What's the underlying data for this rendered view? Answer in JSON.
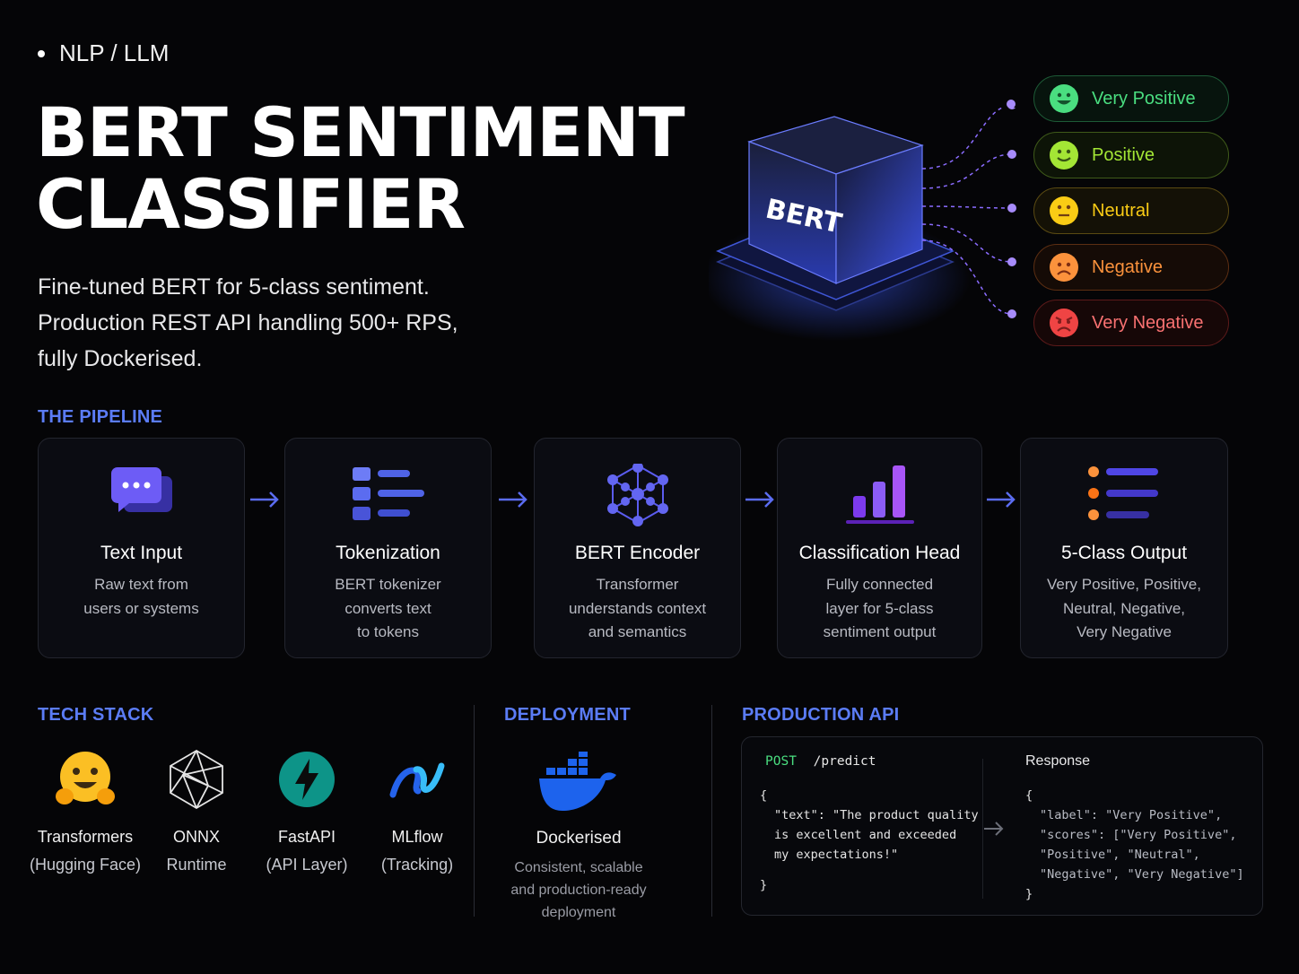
{
  "header": {
    "tag": "NLP / LLM",
    "title_line1": "BERT SENTIMENT",
    "title_line2": "CLASSIFIER",
    "desc_line1": "Fine-tuned BERT for 5-class sentiment.",
    "desc_line2": "Production REST API handling 500+ RPS,",
    "desc_line3": "fully Dockerised."
  },
  "hero": {
    "cube_label": "BERT",
    "classes": [
      {
        "label": "Very Positive",
        "color": "#22c55e"
      },
      {
        "label": "Positive",
        "color": "#84cc16"
      },
      {
        "label": "Neutral",
        "color": "#eab308"
      },
      {
        "label": "Negative",
        "color": "#f97316"
      },
      {
        "label": "Very Negative",
        "color": "#ef4444"
      }
    ]
  },
  "pipeline": {
    "heading": "THE PIPELINE",
    "steps": [
      {
        "title": "Text Input",
        "lines": [
          "Raw text from",
          "users or systems",
          ""
        ],
        "icon": "chat-bubble-icon"
      },
      {
        "title": "Tokenization",
        "lines": [
          "BERT tokenizer",
          "converts text",
          "to tokens"
        ],
        "icon": "token-list-icon"
      },
      {
        "title": "BERT Encoder",
        "lines": [
          "Transformer",
          "understands context",
          "and semantics"
        ],
        "icon": "network-icon"
      },
      {
        "title": "Classification Head",
        "lines": [
          "Fully connected",
          "layer for 5-class",
          "sentiment output"
        ],
        "icon": "bar-chart-icon"
      },
      {
        "title": "5-Class Output",
        "lines": [
          "Very Positive, Positive,",
          "Neutral, Negative,",
          "Very Negative"
        ],
        "icon": "output-list-icon"
      }
    ]
  },
  "tech_stack": {
    "heading": "TECH STACK",
    "items": [
      {
        "name": "Transformers",
        "sub": "(Hugging Face)",
        "icon": "hugging-face-icon"
      },
      {
        "name": "ONNX",
        "sub": "Runtime",
        "icon": "onnx-icon"
      },
      {
        "name": "FastAPI",
        "sub": "(API Layer)",
        "icon": "fastapi-icon"
      },
      {
        "name": "MLflow",
        "sub": "(Tracking)",
        "icon": "mlflow-icon"
      }
    ]
  },
  "deployment": {
    "heading": "DEPLOYMENT",
    "name": "Dockerised",
    "lines": [
      "Consistent, scalable",
      "and production-ready",
      "deployment"
    ],
    "icon": "docker-icon"
  },
  "api": {
    "heading": "PRODUCTION API",
    "method": "POST",
    "path": "/predict",
    "request_lines": [
      "{",
      "\"text\": \"The product quality",
      "is excellent and exceeded",
      "my expectations!\"",
      "}"
    ],
    "response_title": "Response",
    "response_lines": [
      "{",
      "\"label\": \"Very Positive\",",
      "\"scores\": [\"Very Positive\",",
      "\"Positive\", \"Neutral\",",
      "\"Negative\", \"Very Negative\"]",
      "}"
    ]
  }
}
